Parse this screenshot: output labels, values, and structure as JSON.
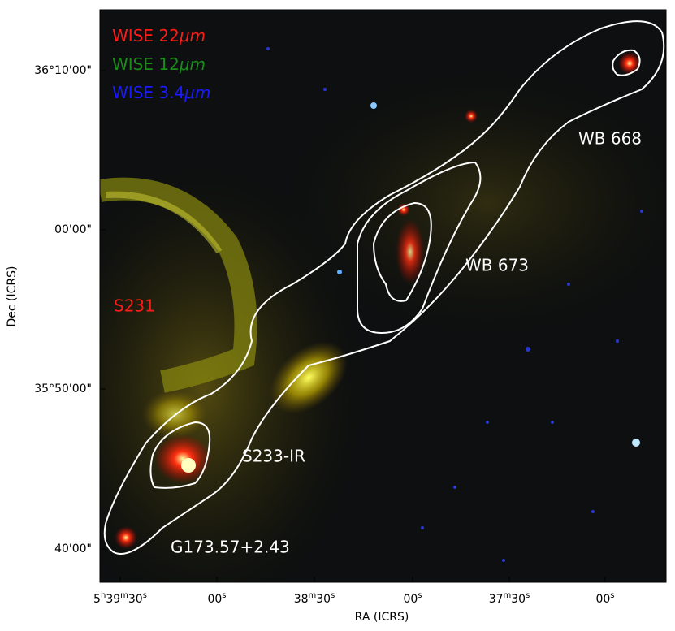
{
  "legend": [
    {
      "parts": [
        "WISE 22",
        "μm"
      ],
      "color": "#ff1a1a"
    },
    {
      "parts": [
        "WISE 12",
        "μm"
      ],
      "color": "#1a8c1a"
    },
    {
      "parts": [
        "WISE 3.4",
        "μm"
      ],
      "color": "#1a1aff"
    }
  ],
  "annotations": {
    "wb668": "WB 668",
    "wb673": "WB 673",
    "s231": "S231",
    "s233ir": "S233-IR",
    "g173": "G173.57+2.43"
  },
  "x_axis": {
    "label": "RA (ICRS)",
    "ticks": [
      [
        "5",
        "h",
        "39",
        "m",
        "30",
        "s"
      ],
      [
        "00",
        "s"
      ],
      [
        "38",
        "m",
        "30",
        "s"
      ],
      [
        "00",
        "s"
      ],
      [
        "37",
        "m",
        "30",
        "s"
      ],
      [
        "00",
        "s"
      ]
    ]
  },
  "y_axis": {
    "label": "Dec (ICRS)",
    "ticks": [
      "36°10'00\"",
      "00'00\"",
      "35°50'00\"",
      "40'00\""
    ]
  }
}
